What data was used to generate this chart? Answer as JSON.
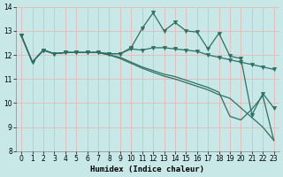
{
  "xlabel": "Humidex (Indice chaleur)",
  "bg_color": "#c8e8e8",
  "grid_color_h": "#e8b8b8",
  "grid_color_v": "#e8b8b8",
  "line_color": "#2d7060",
  "xlim": [
    0,
    23
  ],
  "ylim": [
    8,
    14
  ],
  "yticks": [
    8,
    9,
    10,
    11,
    12,
    13,
    14
  ],
  "xticks": [
    0,
    1,
    2,
    3,
    4,
    5,
    6,
    7,
    8,
    9,
    10,
    11,
    12,
    13,
    14,
    15,
    16,
    17,
    18,
    19,
    20,
    21,
    22,
    23
  ],
  "line1_marked": [
    12.8,
    11.7,
    12.2,
    12.05,
    12.1,
    12.1,
    12.1,
    12.1,
    12.05,
    12.05,
    12.3,
    13.1,
    13.75,
    13.0,
    13.35,
    13.0,
    12.95,
    12.25,
    12.9,
    11.95,
    11.85,
    9.5,
    10.4,
    9.8
  ],
  "line2_marked": [
    12.8,
    11.7,
    12.2,
    12.05,
    12.1,
    12.1,
    12.1,
    12.1,
    12.05,
    12.05,
    12.25,
    12.2,
    12.3,
    12.3,
    12.25,
    12.2,
    12.15,
    12.0,
    11.9,
    11.8,
    11.7,
    11.6,
    11.5,
    11.4
  ],
  "line3_plain": [
    12.8,
    11.7,
    12.2,
    12.05,
    12.1,
    12.1,
    12.1,
    12.1,
    12.0,
    11.9,
    11.7,
    11.5,
    11.35,
    11.2,
    11.1,
    10.95,
    10.8,
    10.65,
    10.45,
    9.45,
    9.3,
    9.75,
    10.3,
    8.45
  ],
  "line4_plain": [
    12.8,
    11.7,
    12.2,
    12.05,
    12.1,
    12.1,
    12.1,
    12.1,
    12.0,
    11.85,
    11.65,
    11.45,
    11.28,
    11.12,
    11.0,
    10.85,
    10.7,
    10.55,
    10.35,
    10.2,
    9.8,
    9.4,
    9.0,
    8.45
  ]
}
